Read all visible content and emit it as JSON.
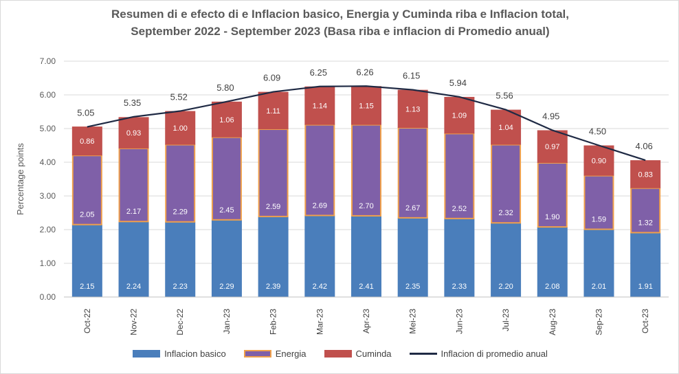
{
  "chart_data": {
    "type": "bar",
    "stacked": true,
    "title": "Resumen di e efecto di e Inflacion basico, Energia y Cuminda riba e Inflacion total,",
    "subtitle": "September 2022 - September 2023 (Basa riba e inflacion di Promedio anual)",
    "ylabel": "Percentage points",
    "xlabel": "",
    "ylim": [
      0,
      7
    ],
    "yticks": [
      "0.00",
      "1.00",
      "2.00",
      "3.00",
      "4.00",
      "5.00",
      "6.00",
      "7.00"
    ],
    "grid": true,
    "legend_position": "bottom",
    "categories": [
      "Oct-22",
      "Nov-22",
      "Dec-22",
      "Jan-23",
      "Feb-23",
      "Mar-23",
      "Apr-23",
      "Mei-23",
      "Jun-23",
      "Jul-23",
      "Aug-23",
      "Sep-23",
      "Oct-23"
    ],
    "series": [
      {
        "name": "Inflacion basico",
        "type": "bar",
        "color": "#4a7ebb",
        "values": [
          2.15,
          2.24,
          2.23,
          2.29,
          2.39,
          2.42,
          2.41,
          2.35,
          2.33,
          2.2,
          2.08,
          2.01,
          1.91
        ],
        "labels": [
          "2.15",
          "2.24",
          "2.23",
          "2.29",
          "2.39",
          "2.42",
          "2.41",
          "2.35",
          "2.33",
          "2.20",
          "2.08",
          "2.01",
          "1.91"
        ]
      },
      {
        "name": "Energia",
        "type": "bar",
        "color": "#7f60a8",
        "border_color": "#f0a04b",
        "values": [
          2.05,
          2.17,
          2.29,
          2.45,
          2.59,
          2.69,
          2.7,
          2.67,
          2.52,
          2.32,
          1.9,
          1.59,
          1.32
        ],
        "labels": [
          "2.05",
          "2.17",
          "2.29",
          "2.45",
          "2.59",
          "2.69",
          "2.70",
          "2.67",
          "2.52",
          "2.32",
          "1.90",
          "1.59",
          "1.32"
        ]
      },
      {
        "name": "Cuminda",
        "type": "bar",
        "color": "#c0504d",
        "values": [
          0.86,
          0.93,
          1.0,
          1.06,
          1.11,
          1.14,
          1.15,
          1.13,
          1.09,
          1.04,
          0.97,
          0.9,
          0.83
        ],
        "labels": [
          "0.86",
          "0.93",
          "1.00",
          "1.06",
          "1.11",
          "1.14",
          "1.15",
          "1.13",
          "1.09",
          "1.04",
          "0.97",
          "0.90",
          "0.83"
        ]
      },
      {
        "name": "Inflacion di promedio anual",
        "type": "line",
        "color": "#1f2a44",
        "values": [
          5.05,
          5.35,
          5.52,
          5.8,
          6.09,
          6.25,
          6.26,
          6.15,
          5.94,
          5.56,
          4.95,
          4.5,
          4.06
        ],
        "labels": [
          "5.05",
          "5.35",
          "5.52",
          "5.80",
          "6.09",
          "6.25",
          "6.26",
          "6.15",
          "5.94",
          "5.56",
          "4.95",
          "4.50",
          "4.06"
        ]
      }
    ]
  }
}
